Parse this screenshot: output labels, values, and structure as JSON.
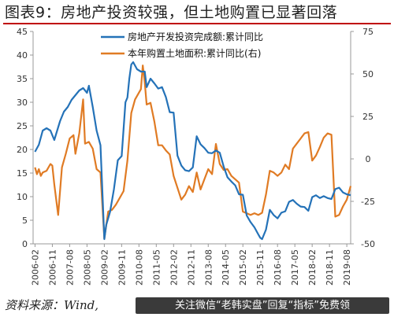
{
  "title": "图表9：房地产投资较强，但土地购置已显著回落",
  "source": "资料来源：Wind,",
  "banner": "关注微信“老韩实盘”回复“指标”免费领",
  "colors": {
    "investment": "#2472b8",
    "land": "#e07b24",
    "axis": "#999999",
    "title_rule": "#c00000"
  },
  "chart_data": {
    "type": "line",
    "left_axis": {
      "ylim": [
        0,
        45
      ],
      "ticks": [
        0,
        5,
        10,
        15,
        20,
        25,
        30,
        35,
        40,
        45
      ]
    },
    "right_axis": {
      "ylim": [
        -50,
        75
      ],
      "ticks": [
        -50,
        -25,
        0,
        25,
        50,
        75
      ]
    },
    "x_tick_labels": [
      "2006-02",
      "2006-11",
      "2007-08",
      "2008-05",
      "2009-02",
      "2009-11",
      "2010-08",
      "2011-05",
      "2012-02",
      "2012-11",
      "2013-08",
      "2014-05",
      "2015-02",
      "2015-11",
      "2016-08",
      "2017-05",
      "2018-02",
      "2018-11",
      "2019-08"
    ],
    "x_range": [
      "2006-01",
      "2019-10"
    ],
    "series": [
      {
        "name": "房地产开发投资完成额:累计同比",
        "axis": "left",
        "points": [
          [
            "2006-02",
            19.5
          ],
          [
            "2006-04",
            21
          ],
          [
            "2006-06",
            24
          ],
          [
            "2006-08",
            24.5
          ],
          [
            "2006-10",
            24
          ],
          [
            "2006-12",
            22
          ],
          [
            "2007-03",
            26
          ],
          [
            "2007-05",
            28
          ],
          [
            "2007-07",
            29
          ],
          [
            "2007-09",
            30.5
          ],
          [
            "2007-11",
            31.5
          ],
          [
            "2008-01",
            32.5
          ],
          [
            "2008-03",
            33
          ],
          [
            "2008-05",
            32
          ],
          [
            "2008-06",
            33.5
          ],
          [
            "2008-08",
            29
          ],
          [
            "2008-10",
            24
          ],
          [
            "2008-12",
            20.9
          ],
          [
            "2009-02",
            1.0
          ],
          [
            "2009-03",
            4.0
          ],
          [
            "2009-05",
            6.8
          ],
          [
            "2009-07",
            11.6
          ],
          [
            "2009-09",
            17.7
          ],
          [
            "2009-11",
            18.6
          ],
          [
            "2010-01",
            30
          ],
          [
            "2010-02",
            31
          ],
          [
            "2010-03",
            35
          ],
          [
            "2010-04",
            38
          ],
          [
            "2010-05",
            38.5
          ],
          [
            "2010-07",
            37
          ],
          [
            "2010-09",
            36.5
          ],
          [
            "2010-11",
            36.5
          ],
          [
            "2010-12",
            33.2
          ],
          [
            "2011-02",
            35
          ],
          [
            "2011-04",
            34
          ],
          [
            "2011-06",
            32.9
          ],
          [
            "2011-08",
            33.2
          ],
          [
            "2011-10",
            31.1
          ],
          [
            "2011-12",
            27.9
          ],
          [
            "2012-02",
            27.8
          ],
          [
            "2012-04",
            18.7
          ],
          [
            "2012-06",
            16.6
          ],
          [
            "2012-08",
            15.6
          ],
          [
            "2012-10",
            15.4
          ],
          [
            "2012-12",
            16.2
          ],
          [
            "2013-02",
            22.8
          ],
          [
            "2013-04",
            21.1
          ],
          [
            "2013-06",
            20.3
          ],
          [
            "2013-08",
            19.3
          ],
          [
            "2013-10",
            19.2
          ],
          [
            "2013-12",
            19.8
          ],
          [
            "2014-02",
            19.3
          ],
          [
            "2014-04",
            16.4
          ],
          [
            "2014-06",
            14.1
          ],
          [
            "2014-08",
            13.2
          ],
          [
            "2014-10",
            12.4
          ],
          [
            "2014-12",
            10.5
          ],
          [
            "2015-02",
            10.4
          ],
          [
            "2015-04",
            6.0
          ],
          [
            "2015-06",
            4.6
          ],
          [
            "2015-08",
            3.5
          ],
          [
            "2015-10",
            2.0
          ],
          [
            "2015-11",
            1.3
          ],
          [
            "2015-12",
            1.0
          ],
          [
            "2016-02",
            3.0
          ],
          [
            "2016-04",
            7.2
          ],
          [
            "2016-06",
            6.1
          ],
          [
            "2016-08",
            5.4
          ],
          [
            "2016-10",
            6.6
          ],
          [
            "2016-12",
            6.9
          ],
          [
            "2017-02",
            8.9
          ],
          [
            "2017-04",
            9.3
          ],
          [
            "2017-06",
            8.5
          ],
          [
            "2017-08",
            7.9
          ],
          [
            "2017-10",
            7.8
          ],
          [
            "2017-12",
            7.0
          ],
          [
            "2018-02",
            9.9
          ],
          [
            "2018-04",
            10.3
          ],
          [
            "2018-06",
            9.7
          ],
          [
            "2018-08",
            10.1
          ],
          [
            "2018-10",
            9.7
          ],
          [
            "2018-12",
            9.5
          ],
          [
            "2019-02",
            11.6
          ],
          [
            "2019-04",
            11.9
          ],
          [
            "2019-06",
            10.9
          ],
          [
            "2019-08",
            10.5
          ],
          [
            "2019-10",
            10.3
          ]
        ]
      },
      {
        "name": "本年购置土地面积:累计同比(右)",
        "axis": "right",
        "points": [
          [
            "2006-02",
            -5
          ],
          [
            "2006-03",
            -9
          ],
          [
            "2006-04",
            -6
          ],
          [
            "2006-05",
            -10
          ],
          [
            "2006-06",
            -8
          ],
          [
            "2006-08",
            -7
          ],
          [
            "2006-10",
            -3
          ],
          [
            "2006-11",
            -4
          ],
          [
            "2006-12",
            -15
          ],
          [
            "2007-02",
            -33
          ],
          [
            "2007-04",
            -5
          ],
          [
            "2007-06",
            3
          ],
          [
            "2007-08",
            12
          ],
          [
            "2007-10",
            14
          ],
          [
            "2007-11",
            3
          ],
          [
            "2008-01",
            15
          ],
          [
            "2008-03",
            35
          ],
          [
            "2008-04",
            9
          ],
          [
            "2008-06",
            10
          ],
          [
            "2008-08",
            6
          ],
          [
            "2008-10",
            -6
          ],
          [
            "2008-12",
            -8
          ],
          [
            "2009-02",
            -47
          ],
          [
            "2009-04",
            -31
          ],
          [
            "2009-06",
            -30
          ],
          [
            "2009-08",
            -27
          ],
          [
            "2009-10",
            -23
          ],
          [
            "2009-12",
            -19
          ],
          [
            "2010-02",
            -1
          ],
          [
            "2010-04",
            27
          ],
          [
            "2010-06",
            35
          ],
          [
            "2010-08",
            39
          ],
          [
            "2010-09",
            41
          ],
          [
            "2010-10",
            55
          ],
          [
            "2010-11",
            45
          ],
          [
            "2010-12",
            32
          ],
          [
            "2011-02",
            33
          ],
          [
            "2011-04",
            22
          ],
          [
            "2011-06",
            8
          ],
          [
            "2011-08",
            8
          ],
          [
            "2011-10",
            5
          ],
          [
            "2011-12",
            2.6
          ],
          [
            "2012-02",
            -10
          ],
          [
            "2012-04",
            -17
          ],
          [
            "2012-06",
            -24
          ],
          [
            "2012-08",
            -21
          ],
          [
            "2012-10",
            -16
          ],
          [
            "2012-12",
            -19.5
          ],
          [
            "2013-02",
            -8
          ],
          [
            "2013-04",
            -18
          ],
          [
            "2013-06",
            -12
          ],
          [
            "2013-08",
            -6
          ],
          [
            "2013-10",
            -9
          ],
          [
            "2013-12",
            8.8
          ],
          [
            "2014-02",
            -3
          ],
          [
            "2014-04",
            -6.5
          ],
          [
            "2014-06",
            -6
          ],
          [
            "2014-08",
            -10
          ],
          [
            "2014-10",
            -12
          ],
          [
            "2014-12",
            -14
          ],
          [
            "2015-02",
            -31
          ],
          [
            "2015-04",
            -32
          ],
          [
            "2015-06",
            -33
          ],
          [
            "2015-08",
            -32
          ],
          [
            "2015-10",
            -33
          ],
          [
            "2015-12",
            -31.7
          ],
          [
            "2016-02",
            -21
          ],
          [
            "2016-04",
            -7
          ],
          [
            "2016-06",
            -8
          ],
          [
            "2016-08",
            -10
          ],
          [
            "2016-10",
            -8
          ],
          [
            "2016-12",
            -3.4
          ],
          [
            "2017-02",
            -6
          ],
          [
            "2017-04",
            6
          ],
          [
            "2017-06",
            9
          ],
          [
            "2017-08",
            12
          ],
          [
            "2017-10",
            15
          ],
          [
            "2017-12",
            15.8
          ],
          [
            "2018-02",
            -1
          ],
          [
            "2018-04",
            2
          ],
          [
            "2018-06",
            7
          ],
          [
            "2018-08",
            12.5
          ],
          [
            "2018-10",
            15
          ],
          [
            "2018-12",
            14.2
          ],
          [
            "2019-02",
            -34
          ],
          [
            "2019-04",
            -33
          ],
          [
            "2019-06",
            -28
          ],
          [
            "2019-08",
            -24
          ],
          [
            "2019-10",
            -16
          ]
        ]
      }
    ],
    "legend": "top"
  }
}
